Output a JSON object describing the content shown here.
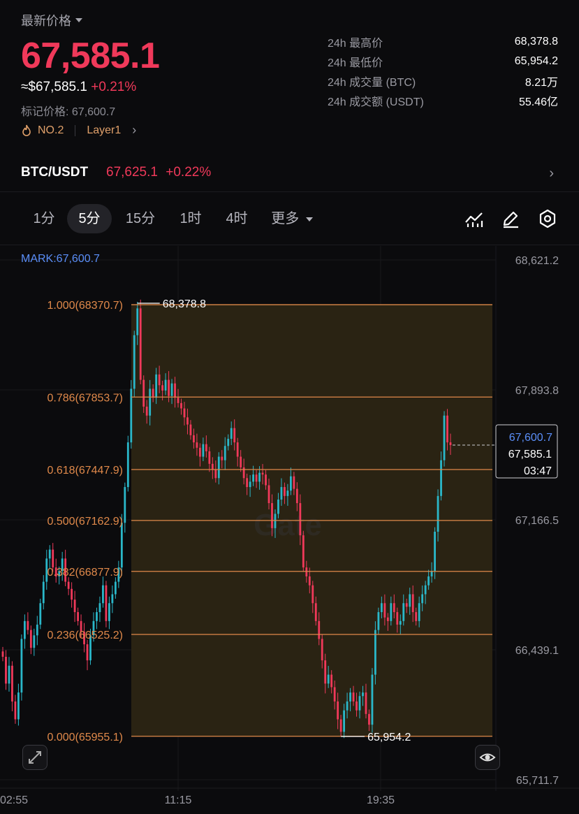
{
  "header": {
    "latest_price_label": "最新价格",
    "price": "67,585.1",
    "approx_usd": "≈$67,585.1",
    "change_pct": "+0.21%",
    "mark_price_label": "标记价格: 67,600.7",
    "rank_tag": "NO.2",
    "category_tag": "Layer1"
  },
  "stats": [
    {
      "label": "24h 最高价",
      "value": "68,378.8"
    },
    {
      "label": "24h 最低价",
      "value": "65,954.2"
    },
    {
      "label": "24h 成交量 (BTC)",
      "value": "8.21万"
    },
    {
      "label": "24h 成交额 (USDT)",
      "value": "55.46亿"
    }
  ],
  "pair": {
    "name": "BTC/USDT",
    "price": "67,625.1",
    "change": "+0.22%"
  },
  "tabs": [
    "1分",
    "5分",
    "15分",
    "1时",
    "4时",
    "更多"
  ],
  "active_tab": "5分",
  "toolbar_icons": [
    "indicator-icon",
    "draw-pen-icon",
    "settings-hex-icon"
  ],
  "chart_data": {
    "type": "candlestick",
    "mark_label": "MARK:67,600.7",
    "y_axis_labels": [
      "68,621.2",
      "67,893.8",
      "67,166.5",
      "66,439.1",
      "65,711.7"
    ],
    "ylim": [
      65711.7,
      68621.2
    ],
    "x_tick_labels": [
      "02:55",
      "11:15",
      "19:35"
    ],
    "fib_levels": [
      {
        "label": "1.000(68370.7)",
        "value": 68370.7
      },
      {
        "label": "0.786(67853.7)",
        "value": 67853.7
      },
      {
        "label": "0.618(67447.9)",
        "value": 67447.9
      },
      {
        "label": "0.500(67162.9)",
        "value": 67162.9
      },
      {
        "label": "0.382(66877.9)",
        "value": 66877.9
      },
      {
        "label": "0.236(66525.2)",
        "value": 66525.2
      },
      {
        "label": "0.000(65955.1)",
        "value": 65955.1
      }
    ],
    "high_marker": "68,378.8",
    "low_marker": "65,954.2",
    "current_box": {
      "mark": "67,600.7",
      "last": "67,585.1",
      "countdown": "03:47"
    },
    "watermark": "Gate",
    "colors": {
      "up": "#2ab7c9",
      "down": "#f0395a",
      "fib": "#e0894a",
      "fib_zone": "#2a2313",
      "mark": "#5b8ff9"
    },
    "closes": [
      66400,
      66250,
      66350,
      66150,
      66050,
      66200,
      66500,
      66600,
      66550,
      66450,
      66520,
      66580,
      66700,
      66820,
      66950,
      67000,
      66900,
      66850,
      66880,
      66950,
      66820,
      66780,
      66720,
      66650,
      66600,
      66540,
      66470,
      66380,
      66520,
      66600,
      66650,
      66700,
      66800,
      66600,
      66700,
      66750,
      66820,
      66900,
      67150,
      67350,
      67600,
      67900,
      68200,
      68350,
      67950,
      67800,
      67750,
      67900,
      67850,
      67980,
      67920,
      67890,
      67950,
      67860,
      67930,
      67850,
      67820,
      67790,
      67740,
      67700,
      67640,
      67600,
      67570,
      67520,
      67590,
      67550,
      67480,
      67450,
      67400,
      67520,
      67500,
      67580,
      67620,
      67680,
      67600,
      67520,
      67460,
      67400,
      67350,
      67380,
      67420,
      67380,
      67430,
      67420,
      67360,
      67260,
      67120,
      67200,
      67280,
      67350,
      67300,
      67330,
      67410,
      67340,
      67260,
      67080,
      66900,
      66850,
      66800,
      66700,
      66600,
      66500,
      66380,
      66250,
      66300,
      66230,
      66150,
      66050,
      65980,
      66100,
      66150,
      66200,
      66150,
      66100,
      66180,
      66200,
      66080,
      66020,
      66300,
      66550,
      66650,
      66700,
      66620,
      66600,
      66700,
      66650,
      66580,
      66600,
      66700,
      66680,
      66750,
      66650,
      66600,
      66700,
      66750,
      66800,
      66850,
      66880,
      67100,
      67300,
      67500,
      67750,
      67600,
      67585
    ]
  }
}
